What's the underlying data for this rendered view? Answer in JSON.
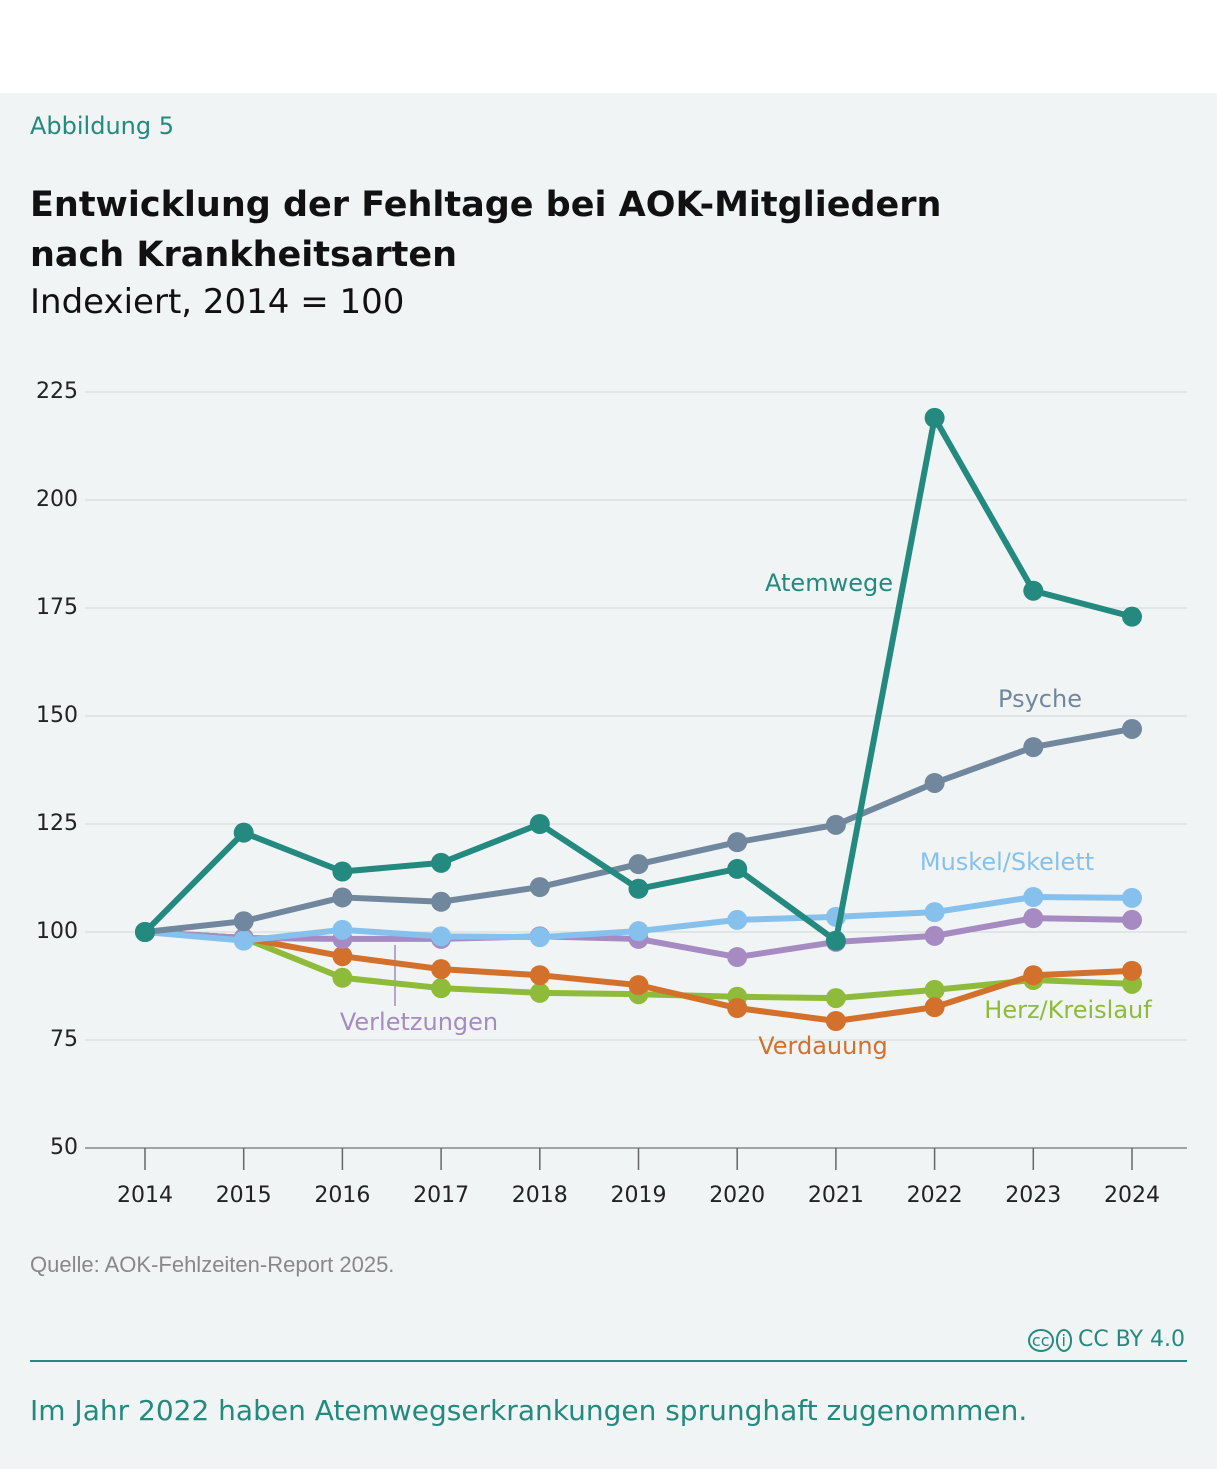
{
  "header": {
    "figure_label": "Abbildung 5"
  },
  "chart_data": {
    "type": "line",
    "title": "Entwicklung der Fehltage bei AOK-Mitgliedern nach Krankheitsarten",
    "subtitle": "Indexiert, 2014 = 100",
    "categories": [
      "2014",
      "2015",
      "2016",
      "2017",
      "2018",
      "2019",
      "2020",
      "2021",
      "2022",
      "2023",
      "2024"
    ],
    "ylim": [
      50,
      225
    ],
    "yticks": [
      50,
      75,
      100,
      125,
      150,
      175,
      200,
      225
    ],
    "grid": true,
    "series": [
      {
        "name": "Herz/Kreislauf",
        "color": "#8fbb3a",
        "values": [
          100,
          98.6,
          89.4,
          87,
          85.9,
          85.6,
          85,
          84.7,
          86.6,
          88.9,
          88
        ]
      },
      {
        "name": "Verdauung",
        "color": "#d2702c",
        "values": [
          100,
          98.6,
          94.4,
          91.4,
          90,
          87.7,
          82.4,
          79.4,
          82.6,
          90,
          91
        ]
      },
      {
        "name": "Verletzungen",
        "color": "#a58bc2",
        "values": [
          100,
          98.6,
          98.4,
          98.4,
          99,
          98.4,
          94.2,
          97.7,
          99.1,
          103.2,
          102.8
        ]
      },
      {
        "name": "Muskel/Skelett",
        "color": "#86c1ee",
        "values": [
          100,
          98,
          100.5,
          99,
          98.8,
          100.2,
          102.8,
          103.5,
          104.6,
          108.1,
          107.9
        ]
      },
      {
        "name": "Psyche",
        "color": "#71879e",
        "values": [
          100,
          102.5,
          108,
          107,
          110.4,
          115.7,
          120.8,
          124.8,
          134.5,
          142.8,
          147
        ]
      },
      {
        "name": "Atemwege",
        "color": "#24897e",
        "values": [
          100,
          123,
          114,
          116,
          125,
          110,
          114.6,
          98,
          219,
          179,
          173
        ]
      }
    ]
  },
  "footer": {
    "source": "Quelle: AOK-Fehlzeiten-Report 2025.",
    "license": "CC BY 4.0",
    "caption": "Im Jahr 2022 haben Atemwegserkrankungen sprunghaft zugenommen."
  }
}
